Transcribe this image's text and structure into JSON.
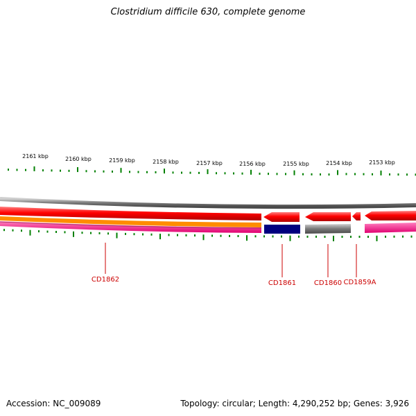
{
  "title": "Clostridium difficile 630, complete genome",
  "footer": {
    "accession": "Accession: NC_009089",
    "topology": "Topology: circular",
    "length": "Length: 4,290,252 bp",
    "genes": "Genes: 3,926"
  },
  "colors": {
    "background": "#ffffff",
    "forward_cds": "#ff0000",
    "reverse_cds": "#ff0000",
    "orange_track": "#ff8c00",
    "magenta_track": "#ff1493",
    "navy_feature": "#00007f",
    "gray_feature": "#606060",
    "backbone": "#808080",
    "tick": "#008000",
    "gene_label": "#cc0000"
  },
  "scale_labels": [
    "2161 kbp",
    "2160 kbp",
    "2159 kbp",
    "2158 kbp",
    "2157 kbp",
    "2156 kbp",
    "2155 kbp",
    "2154 kbp",
    "2153 kbp"
  ],
  "gene_labels": [
    "CD1862",
    "CD1861",
    "CD1860",
    "CD1859A"
  ]
}
